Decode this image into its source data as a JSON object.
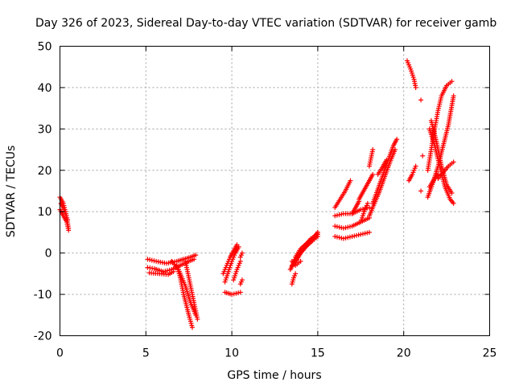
{
  "chart_data": {
    "type": "scatter",
    "title": "Day 326 of 2023, Sidereal Day-to-day VTEC variation (SDTVAR) for receiver gamb",
    "xlabel": "GPS time / hours",
    "ylabel": "SDTVAR / TECUs",
    "xlim": [
      0,
      25
    ],
    "ylim": [
      -20,
      50
    ],
    "xticks": [
      "0",
      "5",
      "10",
      "15",
      "20",
      "25"
    ],
    "yticks": [
      "-20",
      "-10",
      "0",
      "10",
      "20",
      "30",
      "40",
      "50"
    ],
    "grid": true,
    "marker": "plus",
    "color": "#ff0000",
    "series": [
      {
        "segments": [
          [
            [
              0.0,
              13.5
            ],
            [
              0.2,
              12.0
            ],
            [
              0.35,
              9.5
            ],
            [
              0.5,
              6.0
            ]
          ],
          [
            [
              0.0,
              10.5
            ],
            [
              0.2,
              9.0
            ],
            [
              0.4,
              7.5
            ],
            [
              0.5,
              5.5
            ]
          ],
          [
            [
              0.05,
              12.0
            ],
            [
              0.25,
              10.5
            ],
            [
              0.45,
              8.0
            ]
          ],
          [
            [
              5.1,
              -1.5
            ],
            [
              5.6,
              -2.0
            ],
            [
              6.2,
              -2.5
            ],
            [
              6.8,
              -2.0
            ],
            [
              7.2,
              -1.5
            ],
            [
              7.6,
              -1.0
            ],
            [
              7.9,
              -0.5
            ]
          ],
          [
            [
              5.1,
              -3.5
            ],
            [
              5.5,
              -3.8
            ],
            [
              6.0,
              -4.5
            ],
            [
              6.5,
              -4.0
            ],
            [
              7.0,
              -3.0
            ],
            [
              7.5,
              -2.0
            ],
            [
              7.8,
              -1.5
            ]
          ],
          [
            [
              5.2,
              -4.8
            ],
            [
              5.8,
              -5.0
            ],
            [
              6.3,
              -5.2
            ],
            [
              6.6,
              -4.5
            ]
          ],
          [
            [
              6.5,
              -2.0
            ],
            [
              6.9,
              -4.0
            ],
            [
              7.3,
              -8.0
            ],
            [
              7.6,
              -12.0
            ],
            [
              7.9,
              -15.0
            ]
          ],
          [
            [
              6.8,
              -3.0
            ],
            [
              7.0,
              -6.0
            ],
            [
              7.2,
              -10.0
            ],
            [
              7.5,
              -15.0
            ],
            [
              7.7,
              -18.0
            ]
          ],
          [
            [
              7.3,
              -2.0
            ],
            [
              7.5,
              -6.0
            ],
            [
              7.7,
              -10.0
            ],
            [
              7.9,
              -14.0
            ],
            [
              8.0,
              -16.0
            ]
          ],
          [
            [
              9.5,
              -5.0
            ],
            [
              9.7,
              -3.0
            ],
            [
              9.9,
              -1.0
            ],
            [
              10.1,
              0.5
            ],
            [
              10.3,
              2.0
            ]
          ],
          [
            [
              9.6,
              -7.0
            ],
            [
              9.8,
              -4.5
            ],
            [
              10.0,
              -2.0
            ],
            [
              10.2,
              0.0
            ],
            [
              10.4,
              1.5
            ]
          ],
          [
            [
              9.6,
              -9.5
            ],
            [
              10.0,
              -10.0
            ],
            [
              10.5,
              -9.5
            ]
          ],
          [
            [
              10.1,
              -6.5
            ],
            [
              10.3,
              -4.0
            ],
            [
              10.5,
              -2.0
            ]
          ],
          [
            [
              10.5,
              -7.5
            ],
            [
              10.6,
              -6.5
            ]
          ],
          [
            [
              10.5,
              -1.0
            ],
            [
              10.6,
              0.0
            ]
          ],
          [
            [
              13.5,
              -7.5
            ],
            [
              13.6,
              -6.0
            ],
            [
              13.7,
              -5.0
            ]
          ],
          [
            [
              13.4,
              -4.0
            ],
            [
              13.6,
              -2.5
            ],
            [
              13.8,
              -1.0
            ],
            [
              14.0,
              0.5
            ],
            [
              14.3,
              2.0
            ],
            [
              14.6,
              3.5
            ],
            [
              15.0,
              4.5
            ]
          ],
          [
            [
              13.5,
              -3.0
            ],
            [
              13.8,
              -1.5
            ],
            [
              14.0,
              0.0
            ],
            [
              14.3,
              1.5
            ],
            [
              14.7,
              3.0
            ],
            [
              15.0,
              4.0
            ]
          ],
          [
            [
              13.6,
              -2.0
            ],
            [
              13.9,
              -0.5
            ],
            [
              14.2,
              1.0
            ],
            [
              14.5,
              2.5
            ],
            [
              14.8,
              3.5
            ],
            [
              15.0,
              5.0
            ]
          ],
          [
            [
              13.7,
              -1.0
            ],
            [
              14.0,
              1.0
            ],
            [
              14.4,
              2.5
            ],
            [
              14.8,
              4.0
            ],
            [
              15.0,
              5.0
            ]
          ],
          [
            [
              13.5,
              -2.0
            ],
            [
              13.7,
              -3.0
            ],
            [
              14.0,
              -2.0
            ]
          ],
          [
            [
              16.0,
              4.0
            ],
            [
              16.5,
              3.5
            ],
            [
              17.0,
              4.0
            ],
            [
              17.5,
              4.5
            ],
            [
              18.0,
              5.0
            ]
          ],
          [
            [
              16.0,
              6.5
            ],
            [
              16.5,
              6.0
            ],
            [
              17.0,
              6.5
            ],
            [
              17.5,
              7.5
            ],
            [
              18.0,
              8.5
            ]
          ],
          [
            [
              16.0,
              9.0
            ],
            [
              16.5,
              9.5
            ],
            [
              17.0,
              9.5
            ],
            [
              17.5,
              10.5
            ],
            [
              18.0,
              11.0
            ]
          ],
          [
            [
              16.0,
              11.0
            ],
            [
              16.3,
              13.0
            ],
            [
              16.6,
              15.0
            ],
            [
              16.9,
              17.5
            ]
          ],
          [
            [
              17.0,
              9.5
            ],
            [
              17.2,
              11.0
            ],
            [
              17.4,
              12.5
            ]
          ],
          [
            [
              17.5,
              7.5
            ],
            [
              17.7,
              10.0
            ],
            [
              17.9,
              12.0
            ]
          ],
          [
            [
              17.4,
              13.0
            ],
            [
              17.6,
              14.5
            ],
            [
              17.8,
              16.0
            ],
            [
              18.0,
              17.5
            ],
            [
              18.2,
              19.0
            ]
          ],
          [
            [
              18.0,
              9.0
            ],
            [
              18.3,
              12.0
            ],
            [
              18.6,
              15.0
            ],
            [
              18.9,
              18.5
            ],
            [
              19.2,
              22.0
            ],
            [
              19.5,
              25.0
            ]
          ],
          [
            [
              18.2,
              12.0
            ],
            [
              18.5,
              15.5
            ],
            [
              18.8,
              19.0
            ],
            [
              19.1,
              22.5
            ],
            [
              19.4,
              26.0
            ],
            [
              19.6,
              27.5
            ]
          ],
          [
            [
              18.5,
              19.0
            ],
            [
              18.8,
              21.0
            ],
            [
              19.0,
              22.5
            ]
          ],
          [
            [
              18.0,
              21.0
            ],
            [
              18.1,
              23.0
            ],
            [
              18.2,
              25.0
            ]
          ],
          [
            [
              20.2,
              46.5
            ],
            [
              20.4,
              44.5
            ],
            [
              20.6,
              42.0
            ],
            [
              20.7,
              40.0
            ]
          ],
          [
            [
              21.0,
              37.0
            ]
          ],
          [
            [
              20.3,
              17.5
            ],
            [
              20.5,
              19.0
            ],
            [
              20.7,
              21.0
            ]
          ],
          [
            [
              21.1,
              23.5
            ]
          ],
          [
            [
              21.0,
              15.0
            ]
          ],
          [
            [
              21.4,
              20.0
            ],
            [
              21.6,
              25.0
            ],
            [
              21.8,
              30.0
            ],
            [
              22.0,
              34.5
            ],
            [
              22.2,
              38.0
            ],
            [
              22.5,
              40.5
            ],
            [
              22.8,
              41.5
            ]
          ],
          [
            [
              21.4,
              13.5
            ],
            [
              21.7,
              17.0
            ],
            [
              22.0,
              21.0
            ],
            [
              22.3,
              26.0
            ],
            [
              22.6,
              31.0
            ],
            [
              22.9,
              38.0
            ]
          ],
          [
            [
              21.5,
              30.0
            ],
            [
              21.8,
              26.0
            ],
            [
              22.1,
              21.0
            ],
            [
              22.4,
              16.0
            ],
            [
              22.7,
              13.0
            ],
            [
              22.9,
              12.0
            ]
          ],
          [
            [
              21.6,
              32.0
            ],
            [
              21.9,
              27.0
            ],
            [
              22.2,
              21.0
            ],
            [
              22.5,
              16.5
            ],
            [
              22.8,
              14.5
            ]
          ],
          [
            [
              22.0,
              18.0
            ],
            [
              22.3,
              19.5
            ],
            [
              22.6,
              21.0
            ],
            [
              22.9,
              22.0
            ]
          ],
          [
            [
              21.5,
              16.0
            ],
            [
              21.8,
              18.0
            ],
            [
              22.0,
              19.0
            ]
          ]
        ]
      }
    ]
  }
}
